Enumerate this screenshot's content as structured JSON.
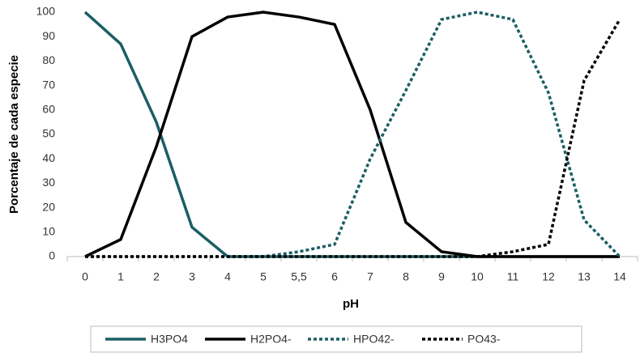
{
  "chart_data": {
    "type": "line",
    "y_label": "Porcentaje de cada especie",
    "x_label": "pH",
    "categories": [
      "0",
      "1",
      "2",
      "3",
      "4",
      "5",
      "5,5",
      "6",
      "7",
      "8",
      "9",
      "10",
      "11",
      "12",
      "13",
      "14"
    ],
    "series": [
      {
        "name": "H3PO4",
        "color": "#1b5e63",
        "dashed": false,
        "values": [
          100,
          87,
          55,
          12,
          0,
          0,
          0,
          0,
          0,
          0,
          0,
          0,
          0,
          0,
          0,
          0
        ]
      },
      {
        "name": "H2PO4-",
        "color": "#000000",
        "dashed": false,
        "values": [
          0,
          7,
          45,
          90,
          98,
          100,
          98,
          95,
          60,
          14,
          2,
          0,
          0,
          0,
          0,
          0
        ]
      },
      {
        "name": "HPO42-",
        "color": "#1b5e63",
        "dashed": true,
        "values": [
          0,
          0,
          0,
          0,
          0,
          0,
          2,
          5,
          40,
          68,
          97,
          100,
          97,
          67,
          15,
          0
        ]
      },
      {
        "name": "PO43-",
        "color": "#000000",
        "dashed": true,
        "values": [
          0,
          0,
          0,
          0,
          0,
          0,
          0,
          0,
          0,
          0,
          0,
          0,
          2,
          5,
          72,
          97
        ]
      }
    ],
    "ylim": [
      0,
      100
    ],
    "yticks": [
      0,
      10,
      20,
      30,
      40,
      50,
      60,
      70,
      80,
      90,
      100
    ],
    "grid": false,
    "legend": "bottom"
  }
}
